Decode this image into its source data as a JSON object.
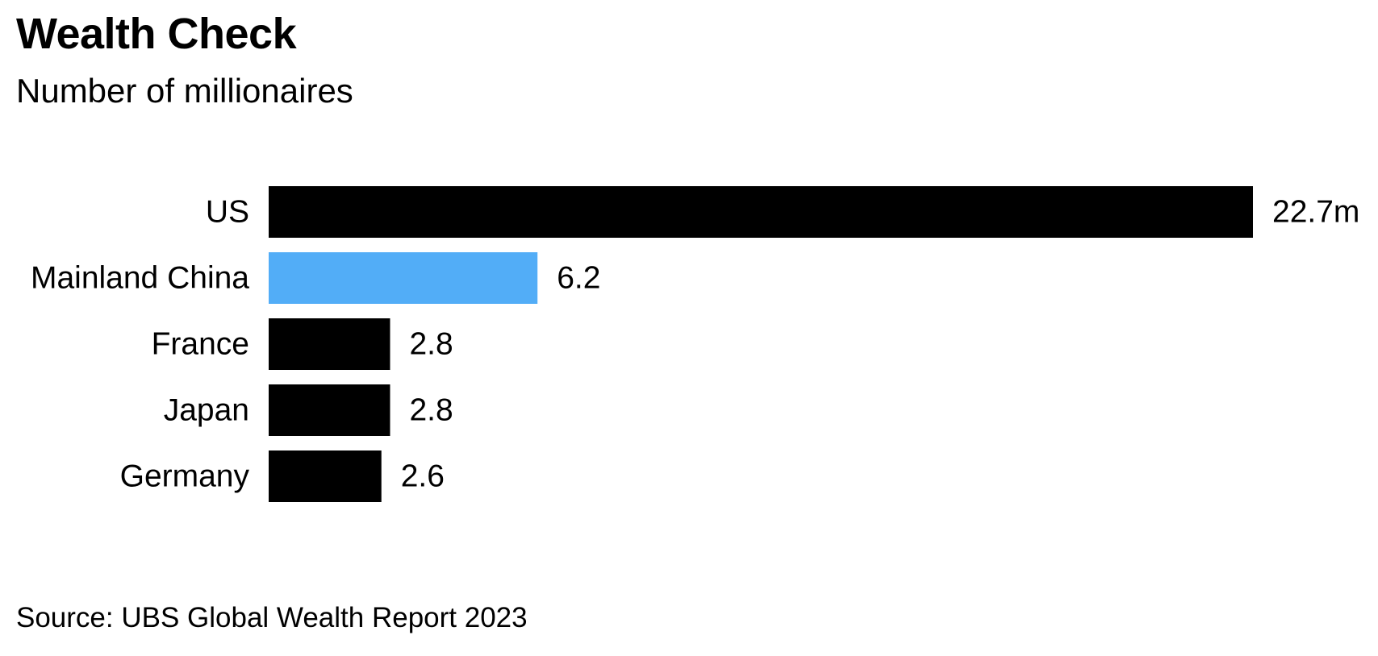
{
  "header": {
    "title": "Wealth Check",
    "subtitle": "Number of millionaires"
  },
  "footer": {
    "source": "Source: UBS Global Wealth Report 2023"
  },
  "colors": {
    "default_bar": "#000000",
    "highlight_bar": "#52adf7",
    "text": "#000000",
    "background": "#ffffff"
  },
  "chart_data": {
    "type": "bar",
    "orientation": "horizontal",
    "title": "Wealth Check",
    "subtitle": "Number of millionaires",
    "unit": "m",
    "categories": [
      "US",
      "Mainland China",
      "France",
      "Japan",
      "Germany"
    ],
    "values": [
      22.7,
      6.2,
      2.8,
      2.8,
      2.6
    ],
    "value_labels": [
      "22.7m",
      "6.2",
      "2.8",
      "2.8",
      "2.6"
    ],
    "highlight": [
      "Mainland China"
    ],
    "xlim": [
      0,
      22.7
    ],
    "grid": false,
    "legend": "none",
    "xlabel": "",
    "ylabel": ""
  }
}
